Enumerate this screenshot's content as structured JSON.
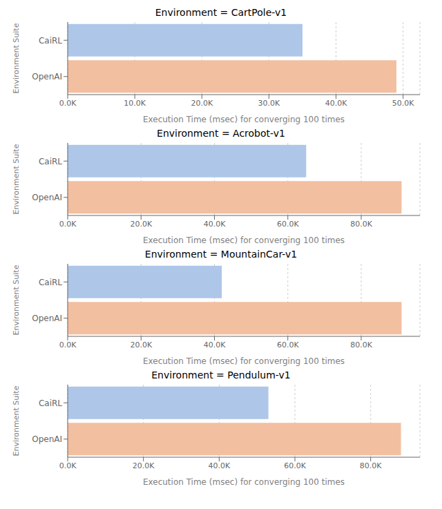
{
  "chart_data": [
    {
      "type": "bar",
      "orientation": "horizontal",
      "title": "Environment = CartPole-v1",
      "categories": [
        "CaiRL",
        "OpenAI"
      ],
      "values": [
        35000,
        49000
      ],
      "colors": [
        "#aec6e8",
        "#f2bfa0"
      ],
      "xlim": [
        0,
        52500
      ],
      "xticks": [
        {
          "value": 0,
          "label": "0.0K"
        },
        {
          "value": 10000,
          "label": "10.0K"
        },
        {
          "value": 20000,
          "label": "20.0K"
        },
        {
          "value": 30000,
          "label": "30.0K"
        },
        {
          "value": 40000,
          "label": "40.0K"
        },
        {
          "value": 50000,
          "label": "50.0K"
        }
      ],
      "xlabel": "Execution Time (msec) for converging 100 times",
      "ylabel": "Environment Suite",
      "grid": true
    },
    {
      "type": "bar",
      "orientation": "horizontal",
      "title": "Environment = Acrobot-v1",
      "categories": [
        "CaiRL",
        "OpenAI"
      ],
      "values": [
        65000,
        91000
      ],
      "colors": [
        "#aec6e8",
        "#f2bfa0"
      ],
      "xlim": [
        0,
        96000
      ],
      "xticks": [
        {
          "value": 0,
          "label": "0.0K"
        },
        {
          "value": 20000,
          "label": "20.0K"
        },
        {
          "value": 40000,
          "label": "40.0K"
        },
        {
          "value": 60000,
          "label": "60.0K"
        },
        {
          "value": 80000,
          "label": "80.0K"
        }
      ],
      "xlabel": "Execution Time (msec) for converging 100 times",
      "ylabel": "Environment Suite",
      "grid": true
    },
    {
      "type": "bar",
      "orientation": "horizontal",
      "title": "Environment = MountainCar-v1",
      "categories": [
        "CaiRL",
        "OpenAI"
      ],
      "values": [
        42000,
        91000
      ],
      "colors": [
        "#aec6e8",
        "#f2bfa0"
      ],
      "xlim": [
        0,
        96000
      ],
      "xticks": [
        {
          "value": 0,
          "label": "0.0K"
        },
        {
          "value": 20000,
          "label": "20.0K"
        },
        {
          "value": 40000,
          "label": "40.0K"
        },
        {
          "value": 60000,
          "label": "60.0K"
        },
        {
          "value": 80000,
          "label": "80.0K"
        }
      ],
      "xlabel": "Execution Time (msec) for converging 100 times",
      "ylabel": "Environment Suite",
      "grid": true
    },
    {
      "type": "bar",
      "orientation": "horizontal",
      "title": "Environment = Pendulum-v1",
      "categories": [
        "CaiRL",
        "OpenAI"
      ],
      "values": [
        53000,
        88000
      ],
      "colors": [
        "#aec6e8",
        "#f2bfa0"
      ],
      "xlim": [
        0,
        93000
      ],
      "xticks": [
        {
          "value": 0,
          "label": "0.0K"
        },
        {
          "value": 20000,
          "label": "20.0K"
        },
        {
          "value": 40000,
          "label": "40.0K"
        },
        {
          "value": 60000,
          "label": "60.0K"
        },
        {
          "value": 80000,
          "label": "80.0K"
        }
      ],
      "xlabel": "Execution Time (msec) for converging 100 times",
      "ylabel": "Environment Suite",
      "grid": true
    }
  ]
}
